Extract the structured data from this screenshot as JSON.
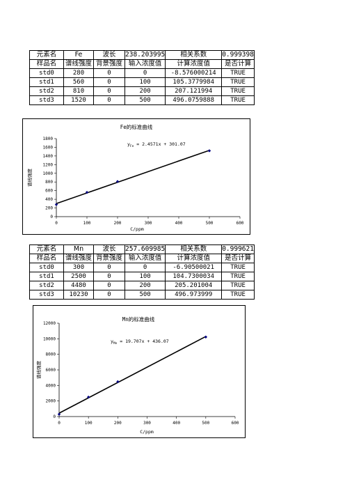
{
  "tables": [
    {
      "header1": [
        "元素名",
        "Fe",
        "波长",
        "238.203995",
        "相关系数",
        "0.999398"
      ],
      "header2": [
        "样品名",
        "谱线强度",
        "背景强度",
        "输入浓度值",
        "计算浓度值",
        "是否计算"
      ],
      "rows": [
        [
          "std0",
          "280",
          "0",
          "0",
          "-8.576000214",
          "TRUE"
        ],
        [
          "std1",
          "560",
          "0",
          "100",
          "105.3779984",
          "TRUE"
        ],
        [
          "std2",
          "810",
          "0",
          "200",
          "207.121994",
          "TRUE"
        ],
        [
          "std3",
          "1520",
          "0",
          "500",
          "496.0759888",
          "TRUE"
        ]
      ]
    },
    {
      "header1": [
        "元素名",
        "Mn",
        "波长",
        "257.609985",
        "相关系数",
        "0.999621"
      ],
      "header2": [
        "样品名",
        "谱线强度",
        "背景强度",
        "输入浓度值",
        "计算浓度值",
        "是否计算"
      ],
      "rows": [
        [
          "std0",
          "300",
          "0",
          "0",
          "-6.90500021",
          "TRUE"
        ],
        [
          "std1",
          "2500",
          "0",
          "100",
          "104.7300034",
          "TRUE"
        ],
        [
          "std2",
          "4480",
          "0",
          "200",
          "205.201004",
          "TRUE"
        ],
        [
          "std3",
          "10230",
          "0",
          "500",
          "496.973999",
          "TRUE"
        ]
      ]
    }
  ],
  "chart_data": [
    {
      "type": "scatter",
      "title": "Fe的标准曲线",
      "xlabel": "C/ppm",
      "ylabel": "谱线强度",
      "xlim": [
        0,
        600
      ],
      "ylim": [
        0,
        1800
      ],
      "xticks": [
        0,
        100,
        200,
        300,
        400,
        500,
        600
      ],
      "yticks": [
        0,
        200,
        400,
        600,
        800,
        1000,
        1200,
        1400,
        1600,
        1800
      ],
      "x": [
        0,
        100,
        200,
        500
      ],
      "y": [
        280,
        560,
        810,
        1520
      ],
      "trendline": {
        "slope": 2.4571,
        "intercept": 301.07
      },
      "equation": {
        "prefix": "y",
        "sub": "Fe",
        "text": " = 2.4571x + 301.07"
      },
      "grid": false,
      "color": "#000080"
    },
    {
      "type": "scatter",
      "title": "Mn的标准曲线",
      "xlabel": "C/ppm",
      "ylabel": "谱线强度",
      "xlim": [
        0,
        600
      ],
      "ylim": [
        0,
        12000
      ],
      "xticks": [
        0,
        100,
        200,
        300,
        400,
        500,
        600
      ],
      "yticks": [
        0,
        2000,
        4000,
        6000,
        8000,
        10000,
        12000
      ],
      "x": [
        0,
        100,
        200,
        500
      ],
      "y": [
        300,
        2500,
        4480,
        10230
      ],
      "trendline": {
        "slope": 19.707,
        "intercept": 436.07
      },
      "equation": {
        "prefix": "y",
        "sub": "Mn",
        "text": " = 19.707x + 436.07"
      },
      "grid": false,
      "color": "#000080"
    }
  ]
}
